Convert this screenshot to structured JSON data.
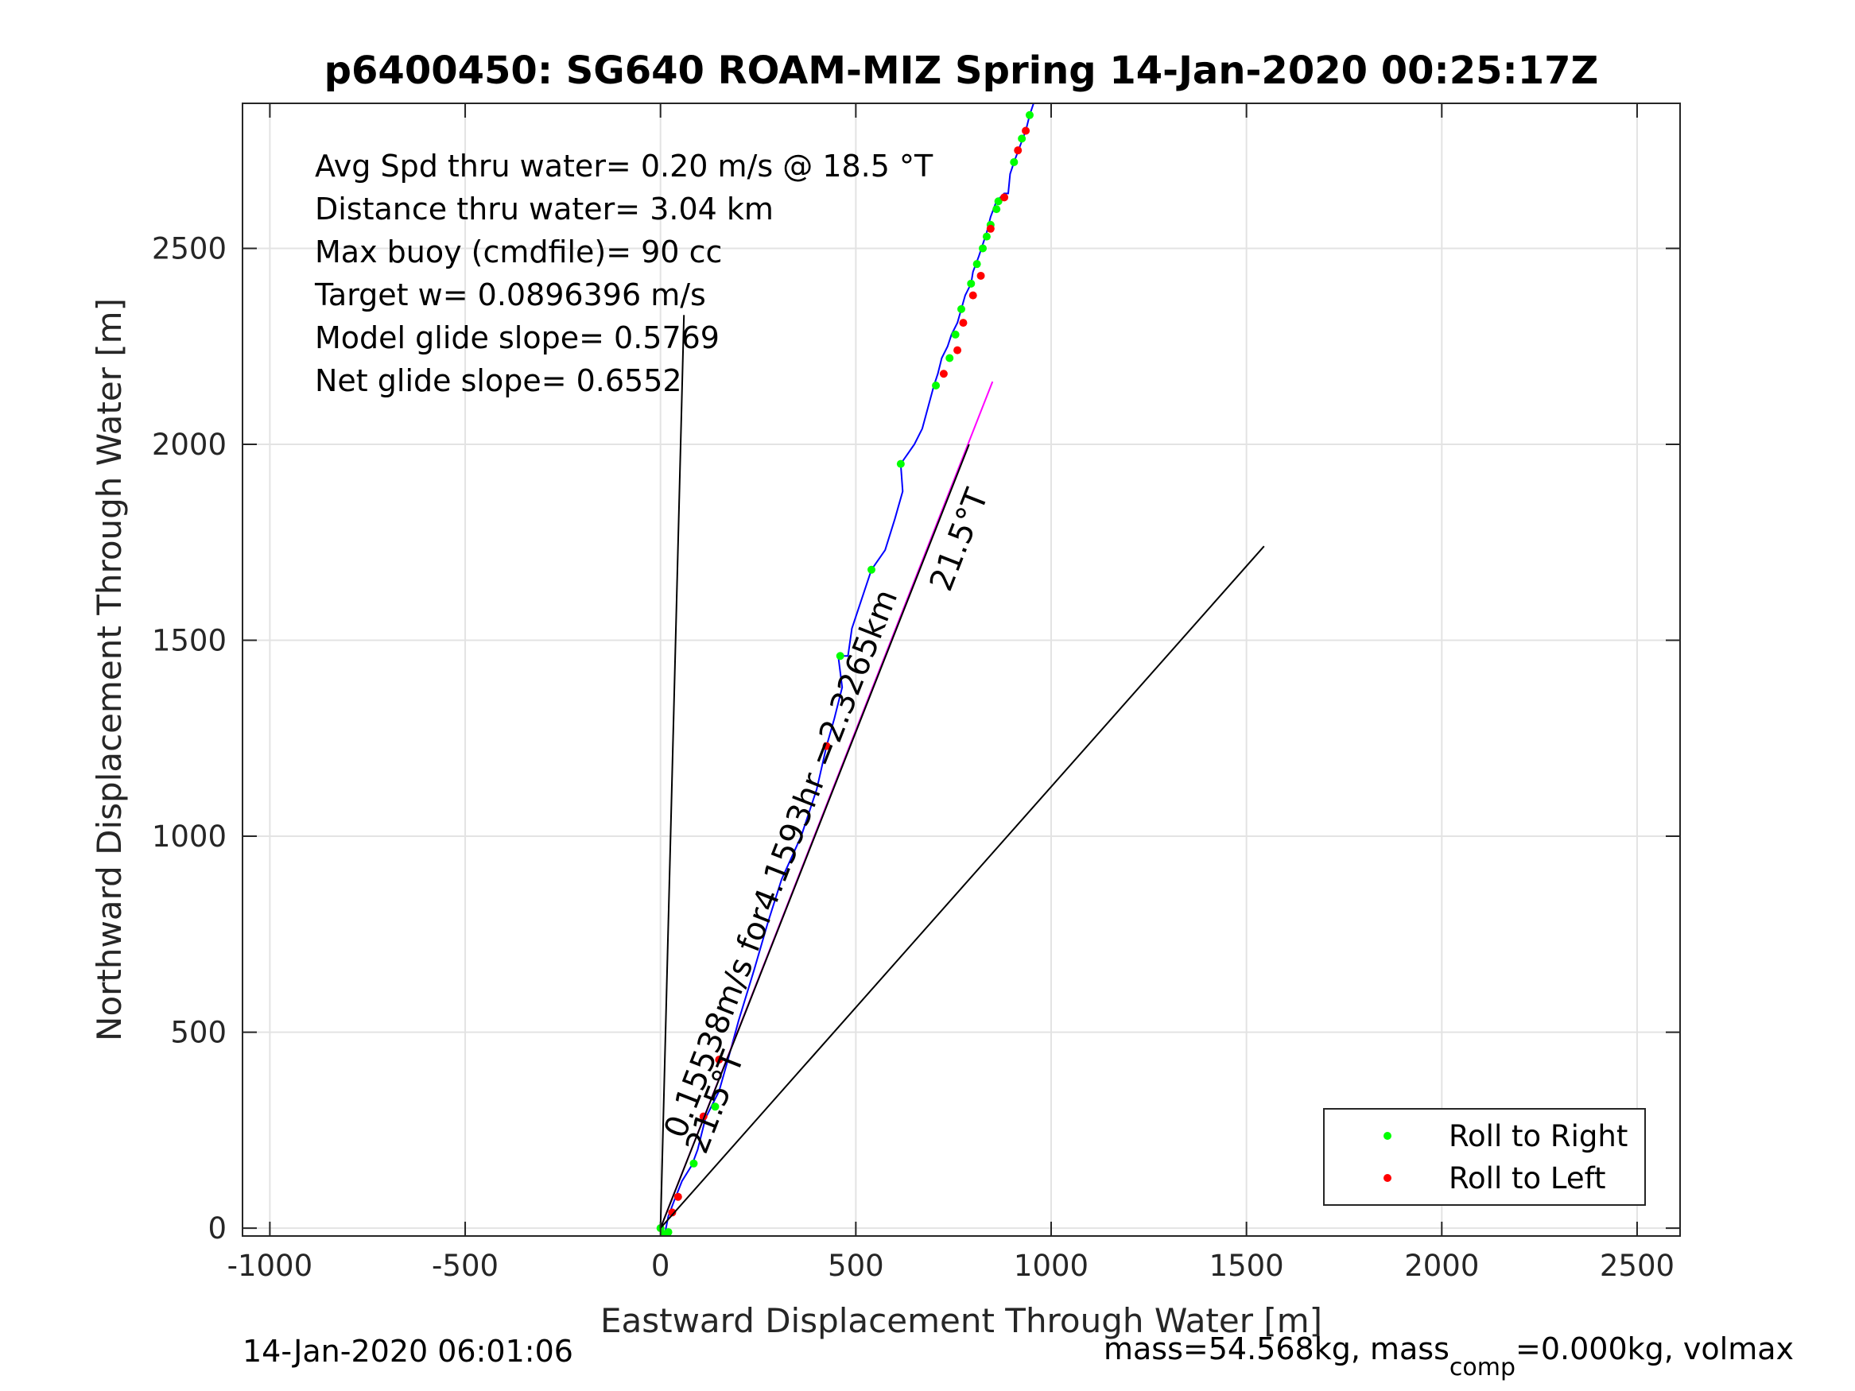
{
  "chart_data": {
    "type": "line",
    "title": "p6400450: SG640 ROAM-MIZ Spring 14-Jan-2020 00:25:17Z",
    "xlabel": "Eastward Displacement Through Water [m]",
    "ylabel": "Northward Displacement Through Water [m]",
    "xlim": [
      -1070,
      2610
    ],
    "ylim": [
      -20,
      2870
    ],
    "xticks": [
      -1000,
      -500,
      0,
      500,
      1000,
      1500,
      2000,
      2500
    ],
    "yticks": [
      0,
      500,
      1000,
      1500,
      2000,
      2500
    ],
    "grid": true,
    "legend_position": "bottom-right",
    "info_lines": [
      "Avg Spd thru water=  0.20 m/s @  18.5 °T",
      "Distance thru water=  3.04 km",
      "Max buoy (cmdfile)= 90 cc",
      "Target w= 0.0896396 m/s",
      "Model glide slope= 0.5769",
      "Net glide slope= 0.6552"
    ],
    "series": [
      {
        "name": "track",
        "color": "#0000ff",
        "x": [
          0,
          10,
          20,
          35,
          55,
          80,
          95,
          115,
          150,
          170,
          200,
          240,
          275,
          310,
          360,
          400,
          425,
          445,
          465,
          455,
          480,
          490,
          540,
          575,
          600,
          620,
          615,
          650,
          670,
          700,
          710,
          720,
          735,
          745,
          760,
          770,
          780,
          795,
          800,
          815,
          825,
          835,
          845,
          860,
          880,
          890,
          895,
          905,
          920,
          935,
          945,
          955
        ],
        "y": [
          0,
          -20,
          30,
          70,
          120,
          160,
          200,
          280,
          350,
          420,
          530,
          660,
          780,
          890,
          1000,
          1120,
          1230,
          1300,
          1380,
          1460,
          1460,
          1530,
          1680,
          1730,
          1810,
          1880,
          1950,
          2000,
          2040,
          2150,
          2180,
          2220,
          2250,
          2280,
          2310,
          2345,
          2380,
          2410,
          2440,
          2480,
          2510,
          2540,
          2580,
          2620,
          2640,
          2640,
          2690,
          2720,
          2760,
          2800,
          2840,
          2870
        ]
      },
      {
        "name": "Roll to Right",
        "color": "#00ff00",
        "x": [
          0,
          10,
          20,
          85,
          140,
          460,
          540,
          615,
          705,
          740,
          755,
          770,
          795,
          810,
          825,
          835,
          845,
          860,
          865,
          905,
          925,
          945
        ],
        "y": [
          0,
          -15,
          -10,
          165,
          310,
          1460,
          1680,
          1950,
          2150,
          2220,
          2280,
          2345,
          2410,
          2460,
          2500,
          2530,
          2560,
          2600,
          2620,
          2720,
          2780,
          2840
        ]
      },
      {
        "name": "Roll to Left",
        "color": "#ff0000",
        "x": [
          30,
          45,
          110,
          150,
          425,
          725,
          760,
          775,
          800,
          820,
          845,
          880,
          915,
          935
        ],
        "y": [
          40,
          80,
          285,
          430,
          1230,
          2180,
          2240,
          2310,
          2380,
          2430,
          2550,
          2630,
          2750,
          2800
        ]
      },
      {
        "name": "model heading",
        "color": "#ff00ff",
        "x": [
          0,
          850
        ],
        "y": [
          0,
          2160
        ]
      },
      {
        "name": "fan line N",
        "color": "#000000",
        "x": [
          0,
          60
        ],
        "y": [
          0,
          2330
        ]
      },
      {
        "name": "fan line NE",
        "color": "#000000",
        "x": [
          0,
          1545
        ],
        "y": [
          0,
          1740
        ]
      },
      {
        "name": "current line",
        "color": "#000000",
        "x": [
          0,
          790
        ],
        "y": [
          0,
          2000
        ]
      }
    ],
    "annotations": [
      {
        "text": "0.15538m/s for4.1593hr =2.3265km",
        "x": 60,
        "y": 225,
        "angle": -68.6
      },
      {
        "text": "21.5°T",
        "x": 115,
        "y": 185,
        "angle": -68.6
      },
      {
        "text": "21.5°T",
        "x": 740,
        "y": 1620,
        "angle": -68.6
      }
    ],
    "footer_left": "14-Jan-2020 06:01:06",
    "footer_right": "mass=54.568kg, mass",
    "footer_right_sub": "comp",
    "footer_right_tail": "=0.000kg, volmax"
  }
}
